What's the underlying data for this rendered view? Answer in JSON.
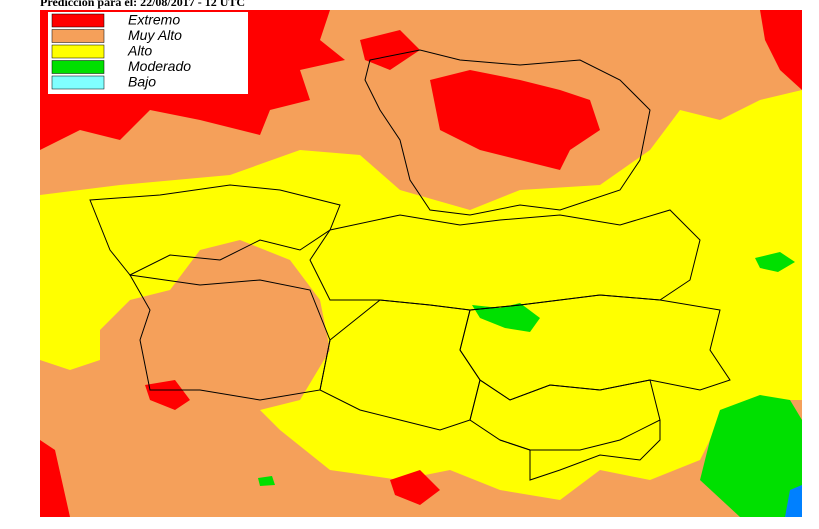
{
  "header": {
    "title": "Predicción para el: 22/08/2017 - 12 UTC"
  },
  "legend": {
    "items": [
      {
        "label": "Extremo",
        "color": "#ff0000"
      },
      {
        "label": "Muy Alto",
        "color": "#f5a05a"
      },
      {
        "label": "Alto",
        "color": "#ffff00"
      },
      {
        "label": "Moderado",
        "color": "#00e000"
      },
      {
        "label": "Bajo",
        "color": "#80ffff"
      }
    ]
  }
}
